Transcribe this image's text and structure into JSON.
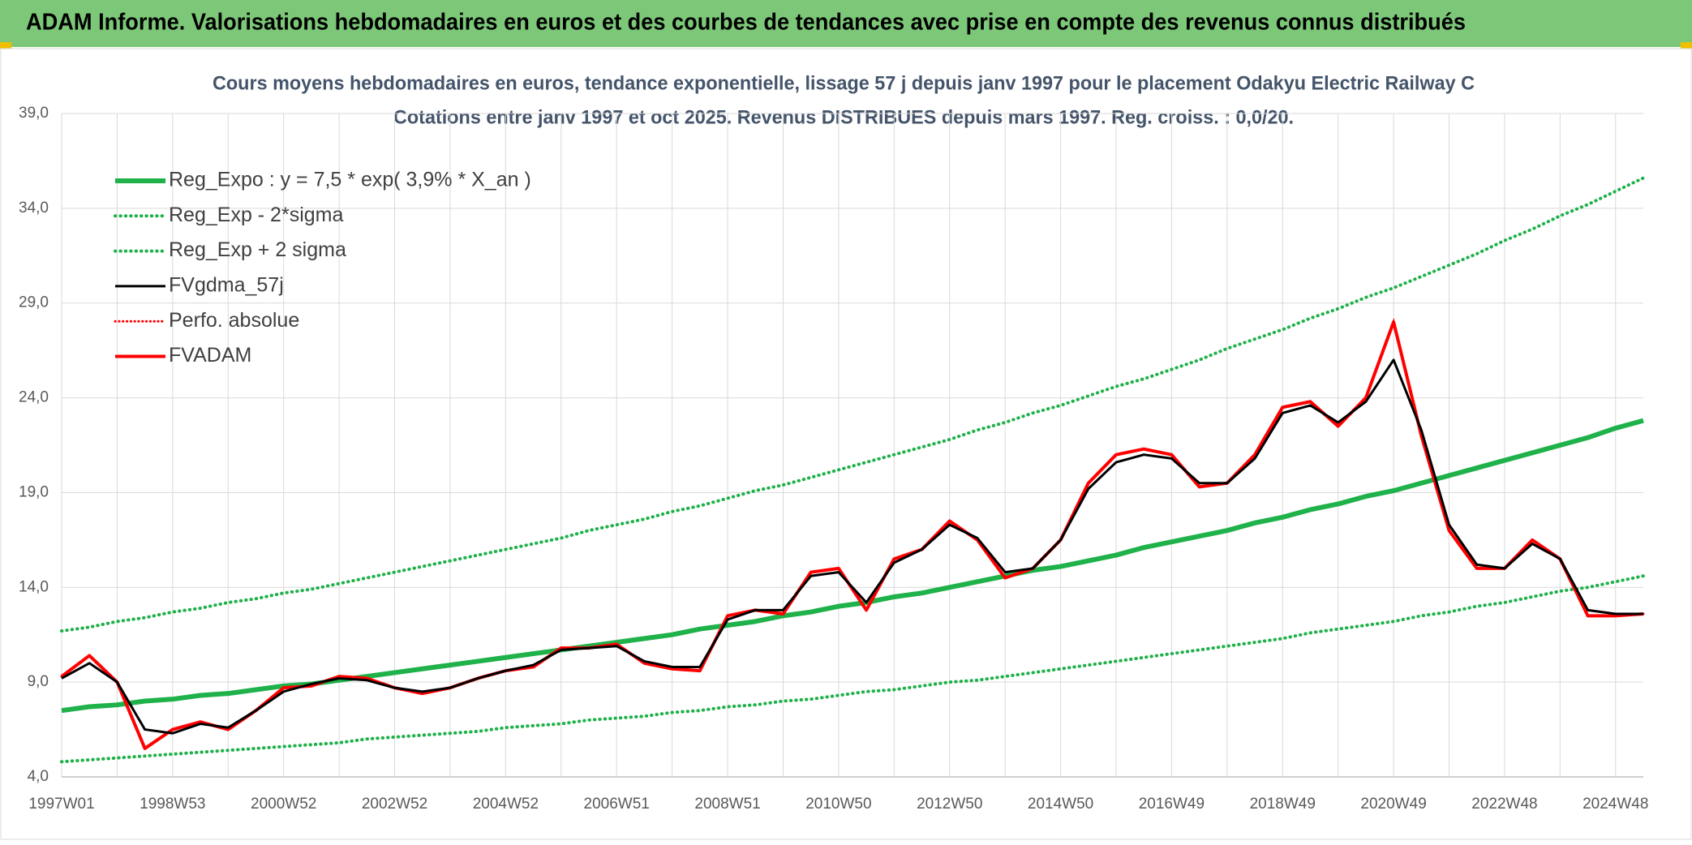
{
  "header": {
    "title": "ADAM Informe. Valorisations hebdomadaires en euros et des courbes de tendances avec prise en compte des revenus connus distribués"
  },
  "chart_data": {
    "type": "line",
    "title": "Cours moyens hebdomadaires en euros, tendance exponentielle, lissage 57 j depuis janv 1997 pour le placement Odakyu Electric Railway C",
    "subtitle": "Cotations entre janv 1997 et oct 2025. Revenus DISTRIBUES depuis mars 1997. Reg. croiss. : 0,0/20.",
    "categories": [
      "1997W01",
      null,
      null,
      null,
      "1998W53",
      null,
      null,
      null,
      "2000W52",
      null,
      null,
      null,
      "2002W52",
      null,
      null,
      null,
      "2004W52",
      null,
      null,
      null,
      "2006W51",
      null,
      null,
      null,
      "2008W51",
      null,
      null,
      null,
      "2010W50",
      null,
      null,
      null,
      "2012W50",
      null,
      null,
      null,
      "2014W50",
      null,
      null,
      null,
      "2016W49",
      null,
      null,
      null,
      "2018W49",
      null,
      null,
      null,
      "2020W49",
      null,
      null,
      null,
      "2022W48",
      null,
      null,
      null,
      "2024W48",
      null
    ],
    "ylim": [
      4,
      39
    ],
    "yticks": [
      {
        "value": 4,
        "label": "4,0"
      },
      {
        "value": 9,
        "label": "9,0"
      },
      {
        "value": 14,
        "label": "14,0"
      },
      {
        "value": 19,
        "label": "19,0"
      },
      {
        "value": 24,
        "label": "24,0"
      },
      {
        "value": 29,
        "label": "29,0"
      },
      {
        "value": 34,
        "label": "34,0"
      },
      {
        "value": 39,
        "label": "39,0"
      }
    ],
    "grid": true,
    "legend": "upper-left",
    "series": [
      {
        "name": "Reg_Expo : y = 7,5 * exp( 3,9% *  X_an )",
        "color": "#1fb14a",
        "style": "solid",
        "width": 6,
        "values": [
          7.5,
          7.7,
          7.8,
          8.0,
          8.1,
          8.3,
          8.4,
          8.6,
          8.8,
          8.9,
          9.1,
          9.3,
          9.5,
          9.7,
          9.9,
          10.1,
          10.3,
          10.5,
          10.7,
          10.9,
          11.1,
          11.3,
          11.5,
          11.8,
          12.0,
          12.2,
          12.5,
          12.7,
          13.0,
          13.2,
          13.5,
          13.7,
          14.0,
          14.3,
          14.6,
          14.9,
          15.1,
          15.4,
          15.7,
          16.1,
          16.4,
          16.7,
          17.0,
          17.4,
          17.7,
          18.1,
          18.4,
          18.8,
          19.1,
          19.5,
          19.9,
          20.3,
          20.7,
          21.1,
          21.5,
          21.9,
          22.4,
          22.8
        ]
      },
      {
        "name": "Reg_Exp - 2*sigma",
        "color": "#1fb14a",
        "style": "dotted",
        "width": 4,
        "values": [
          4.8,
          4.9,
          5.0,
          5.1,
          5.2,
          5.3,
          5.4,
          5.5,
          5.6,
          5.7,
          5.8,
          6.0,
          6.1,
          6.2,
          6.3,
          6.4,
          6.6,
          6.7,
          6.8,
          7.0,
          7.1,
          7.2,
          7.4,
          7.5,
          7.7,
          7.8,
          8.0,
          8.1,
          8.3,
          8.5,
          8.6,
          8.8,
          9.0,
          9.1,
          9.3,
          9.5,
          9.7,
          9.9,
          10.1,
          10.3,
          10.5,
          10.7,
          10.9,
          11.1,
          11.3,
          11.6,
          11.8,
          12.0,
          12.2,
          12.5,
          12.7,
          13.0,
          13.2,
          13.5,
          13.8,
          14.0,
          14.3,
          14.6
        ]
      },
      {
        "name": "Reg_Exp + 2 sigma",
        "color": "#1fb14a",
        "style": "dotted",
        "width": 4,
        "values": [
          11.7,
          11.9,
          12.2,
          12.4,
          12.7,
          12.9,
          13.2,
          13.4,
          13.7,
          13.9,
          14.2,
          14.5,
          14.8,
          15.1,
          15.4,
          15.7,
          16.0,
          16.3,
          16.6,
          17.0,
          17.3,
          17.6,
          18.0,
          18.3,
          18.7,
          19.1,
          19.4,
          19.8,
          20.2,
          20.6,
          21.0,
          21.4,
          21.8,
          22.3,
          22.7,
          23.2,
          23.6,
          24.1,
          24.6,
          25.0,
          25.5,
          26.0,
          26.6,
          27.1,
          27.6,
          28.2,
          28.7,
          29.3,
          29.8,
          30.4,
          31.0,
          31.6,
          32.3,
          32.9,
          33.6,
          34.2,
          34.9,
          35.6
        ]
      },
      {
        "name": "FVgdma_57j",
        "color": "#000000",
        "style": "solid",
        "width": 3,
        "values": [
          9.2,
          10.0,
          9.0,
          6.5,
          6.3,
          6.8,
          6.6,
          7.5,
          8.5,
          8.9,
          9.2,
          9.1,
          8.7,
          8.5,
          8.7,
          9.2,
          9.6,
          9.9,
          10.7,
          10.8,
          10.9,
          10.1,
          9.8,
          9.8,
          12.3,
          12.8,
          12.8,
          14.6,
          14.8,
          13.2,
          15.3,
          16.0,
          17.3,
          16.6,
          14.8,
          15.0,
          16.5,
          19.2,
          20.6,
          21.0,
          20.8,
          19.5,
          19.5,
          20.8,
          23.2,
          23.6,
          22.7,
          23.8,
          26.0,
          22.3,
          17.3,
          15.2,
          15.0,
          16.3,
          15.5,
          12.8,
          12.6,
          12.6
        ]
      },
      {
        "name": "Perfo. absolue",
        "color": "#ff0000",
        "style": "dotted",
        "width": 3,
        "values": [
          9.3,
          10.4,
          9.0,
          5.5,
          6.5,
          6.9,
          6.5,
          7.5,
          8.7,
          8.8,
          9.3,
          9.2,
          8.7,
          8.4,
          8.7,
          9.2,
          9.6,
          9.8,
          10.8,
          10.8,
          11.0,
          10.0,
          9.7,
          9.6,
          12.5,
          12.8,
          12.6,
          14.8,
          15.0,
          12.8,
          15.5,
          16.0,
          17.5,
          16.5,
          14.5,
          15.0,
          16.5,
          19.5,
          21.0,
          21.3,
          21.0,
          19.3,
          19.5,
          21.0,
          23.5,
          23.8,
          22.5,
          24.0,
          28.0,
          22.0,
          17.0,
          15.0,
          15.0,
          16.5,
          15.5,
          12.5,
          12.5,
          12.6
        ]
      },
      {
        "name": "FVADAM",
        "color": "#ff0000",
        "style": "solid",
        "width": 4,
        "values": [
          9.3,
          10.4,
          9.0,
          5.5,
          6.5,
          6.9,
          6.5,
          7.5,
          8.7,
          8.8,
          9.3,
          9.2,
          8.7,
          8.4,
          8.7,
          9.2,
          9.6,
          9.8,
          10.8,
          10.8,
          11.0,
          10.0,
          9.7,
          9.6,
          12.5,
          12.8,
          12.6,
          14.8,
          15.0,
          12.8,
          15.5,
          16.0,
          17.5,
          16.5,
          14.5,
          15.0,
          16.5,
          19.5,
          21.0,
          21.3,
          21.0,
          19.3,
          19.5,
          21.0,
          23.5,
          23.8,
          22.5,
          24.0,
          28.0,
          22.0,
          17.0,
          15.0,
          15.0,
          16.5,
          15.5,
          12.5,
          12.5,
          12.6
        ]
      }
    ]
  }
}
